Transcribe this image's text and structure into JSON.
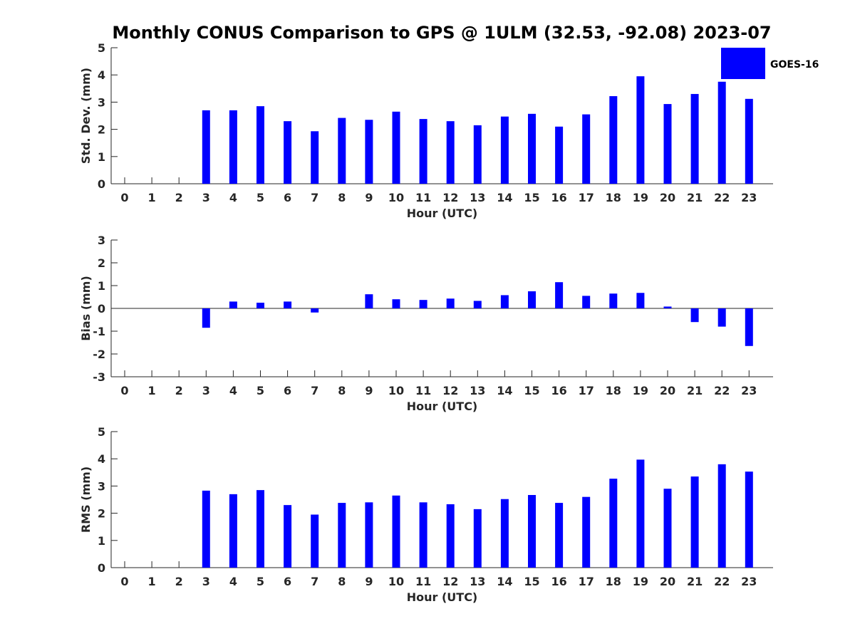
{
  "title": "Monthly CONUS Comparison to GPS @ 1ULM (32.53, -92.08) 2023-07",
  "colors": {
    "bar": "#0000ff",
    "axis": "#262626"
  },
  "legend": {
    "label": "GOES-16",
    "placement": "top-right"
  },
  "chart_data": [
    {
      "type": "bar",
      "ylabel": "Std. Dev. (mm)",
      "xlabel": "Hour (UTC)",
      "ylim": [
        0,
        5
      ],
      "yticks": [
        0,
        1,
        2,
        3,
        4,
        5
      ],
      "categories": [
        "0",
        "1",
        "2",
        "3",
        "4",
        "5",
        "6",
        "7",
        "8",
        "9",
        "10",
        "11",
        "12",
        "13",
        "14",
        "15",
        "16",
        "17",
        "18",
        "19",
        "20",
        "21",
        "22",
        "23"
      ],
      "series": [
        {
          "name": "GOES-16",
          "values": [
            null,
            null,
            null,
            2.7,
            2.7,
            2.85,
            2.3,
            1.93,
            2.42,
            2.35,
            2.65,
            2.38,
            2.3,
            2.15,
            2.47,
            2.57,
            2.1,
            2.55,
            3.22,
            3.95,
            2.93,
            3.3,
            3.75,
            3.12
          ]
        }
      ]
    },
    {
      "type": "bar",
      "ylabel": "Bias (mm)",
      "xlabel": "Hour (UTC)",
      "ylim": [
        -3,
        3
      ],
      "yticks": [
        -3,
        -2,
        -1,
        0,
        1,
        2,
        3
      ],
      "categories": [
        "0",
        "1",
        "2",
        "3",
        "4",
        "5",
        "6",
        "7",
        "8",
        "9",
        "10",
        "11",
        "12",
        "13",
        "14",
        "15",
        "16",
        "17",
        "18",
        "19",
        "20",
        "21",
        "22",
        "23"
      ],
      "series": [
        {
          "name": "GOES-16",
          "values": [
            null,
            null,
            null,
            -0.85,
            0.3,
            0.25,
            0.3,
            -0.18,
            null,
            0.62,
            0.4,
            0.37,
            0.43,
            0.33,
            0.58,
            0.75,
            1.15,
            0.55,
            0.65,
            0.68,
            0.08,
            -0.6,
            -0.8,
            -1.65
          ]
        }
      ]
    },
    {
      "type": "bar",
      "ylabel": "RMS (mm)",
      "xlabel": "Hour (UTC)",
      "ylim": [
        0,
        5
      ],
      "yticks": [
        0,
        1,
        2,
        3,
        4,
        5
      ],
      "categories": [
        "0",
        "1",
        "2",
        "3",
        "4",
        "5",
        "6",
        "7",
        "8",
        "9",
        "10",
        "11",
        "12",
        "13",
        "14",
        "15",
        "16",
        "17",
        "18",
        "19",
        "20",
        "21",
        "22",
        "23"
      ],
      "series": [
        {
          "name": "GOES-16",
          "values": [
            null,
            null,
            null,
            2.83,
            2.7,
            2.85,
            2.3,
            1.95,
            2.38,
            2.4,
            2.65,
            2.4,
            2.33,
            2.15,
            2.52,
            2.67,
            2.38,
            2.6,
            3.27,
            3.97,
            2.9,
            3.35,
            3.8,
            3.53
          ]
        }
      ]
    }
  ]
}
